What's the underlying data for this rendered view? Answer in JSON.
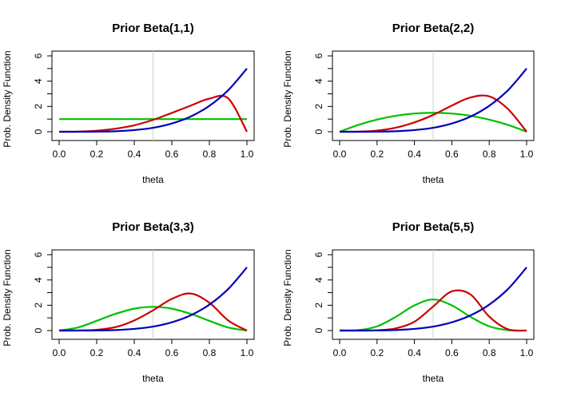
{
  "chart_data": [
    {
      "type": "line",
      "title": "Prior Beta(1,1)",
      "xlabel": "theta",
      "ylabel": "Prob. Density Function",
      "xlim": [
        0,
        1
      ],
      "ylim": [
        0,
        6
      ],
      "xticks": [
        "0.0",
        "0.2",
        "0.4",
        "0.6",
        "0.8",
        "1.0"
      ],
      "yticks": [
        "0",
        "2",
        "4",
        "6"
      ],
      "vline_x": 0.5,
      "x": [
        0,
        0.1,
        0.2,
        0.3,
        0.4,
        0.5,
        0.6,
        0.7,
        0.8,
        0.9,
        1.0
      ],
      "series": [
        {
          "color": "#00c000",
          "values": [
            1,
            1,
            1,
            1,
            1,
            1,
            1,
            1,
            1,
            1,
            1
          ]
        },
        {
          "color": "#cc0000",
          "values": [
            0,
            0.01,
            0.08,
            0.24,
            0.51,
            0.94,
            1.49,
            2.06,
            2.62,
            2.64,
            0
          ]
        },
        {
          "color": "#0000bb",
          "values": [
            0,
            0.0005,
            0.008,
            0.04,
            0.13,
            0.31,
            0.65,
            1.2,
            2.05,
            3.28,
            5
          ]
        }
      ]
    },
    {
      "type": "line",
      "title": "Prior Beta(2,2)",
      "xlabel": "theta",
      "ylabel": "Prob. Density Function",
      "xlim": [
        0,
        1
      ],
      "ylim": [
        0,
        6
      ],
      "xticks": [
        "0.0",
        "0.2",
        "0.4",
        "0.6",
        "0.8",
        "1.0"
      ],
      "yticks": [
        "0",
        "2",
        "4",
        "6"
      ],
      "vline_x": 0.5,
      "x": [
        0,
        0.1,
        0.2,
        0.3,
        0.4,
        0.5,
        0.6,
        0.7,
        0.8,
        0.9,
        1.0
      ],
      "series": [
        {
          "color": "#00c000",
          "values": [
            0,
            0.54,
            0.96,
            1.26,
            1.44,
            1.5,
            1.44,
            1.26,
            0.96,
            0.54,
            0
          ]
        },
        {
          "color": "#cc0000",
          "values": [
            0,
            0.01,
            0.09,
            0.32,
            0.74,
            1.33,
            2.07,
            2.71,
            2.8,
            1.8,
            0
          ]
        },
        {
          "color": "#0000bb",
          "values": [
            0,
            0.0005,
            0.008,
            0.04,
            0.13,
            0.31,
            0.65,
            1.2,
            2.05,
            3.28,
            5
          ]
        }
      ]
    },
    {
      "type": "line",
      "title": "Prior Beta(3,3)",
      "xlabel": "theta",
      "ylabel": "Prob. Density Function",
      "xlim": [
        0,
        1
      ],
      "ylim": [
        0,
        6
      ],
      "xticks": [
        "0.0",
        "0.2",
        "0.4",
        "0.6",
        "0.8",
        "1.0"
      ],
      "yticks": [
        "0",
        "2",
        "4",
        "6"
      ],
      "vline_x": 0.5,
      "x": [
        0,
        0.1,
        0.2,
        0.3,
        0.4,
        0.5,
        0.6,
        0.7,
        0.8,
        0.9,
        1.0
      ],
      "series": [
        {
          "color": "#00c000",
          "values": [
            0,
            0.24,
            0.77,
            1.32,
            1.73,
            1.875,
            1.73,
            1.32,
            0.77,
            0.24,
            0
          ]
        },
        {
          "color": "#cc0000",
          "values": [
            0,
            0.005,
            0.06,
            0.27,
            0.8,
            1.6,
            2.5,
            2.93,
            2.2,
            0.8,
            0
          ]
        },
        {
          "color": "#0000bb",
          "values": [
            0,
            0.0005,
            0.008,
            0.04,
            0.13,
            0.31,
            0.65,
            1.2,
            2.05,
            3.28,
            5
          ]
        }
      ]
    },
    {
      "type": "line",
      "title": "Prior Beta(5,5)",
      "xlabel": "theta",
      "ylabel": "Prob. Density Function",
      "xlim": [
        0,
        1
      ],
      "ylim": [
        0,
        6
      ],
      "xticks": [
        "0.0",
        "0.2",
        "0.4",
        "0.6",
        "0.8",
        "1.0"
      ],
      "yticks": [
        "0",
        "2",
        "4",
        "6"
      ],
      "vline_x": 0.5,
      "x": [
        0,
        0.1,
        0.2,
        0.3,
        0.4,
        0.5,
        0.6,
        0.7,
        0.8,
        0.9,
        1.0
      ],
      "series": [
        {
          "color": "#00c000",
          "values": [
            0,
            0.03,
            0.33,
            1.08,
            1.99,
            2.46,
            1.99,
            1.08,
            0.33,
            0.03,
            0
          ]
        },
        {
          "color": "#cc0000",
          "values": [
            0,
            0.001,
            0.02,
            0.17,
            0.7,
            1.9,
            3.1,
            2.85,
            1.1,
            0.1,
            0
          ]
        },
        {
          "color": "#0000bb",
          "values": [
            0,
            0.0005,
            0.008,
            0.04,
            0.13,
            0.31,
            0.65,
            1.2,
            2.05,
            3.28,
            5
          ]
        }
      ]
    }
  ]
}
